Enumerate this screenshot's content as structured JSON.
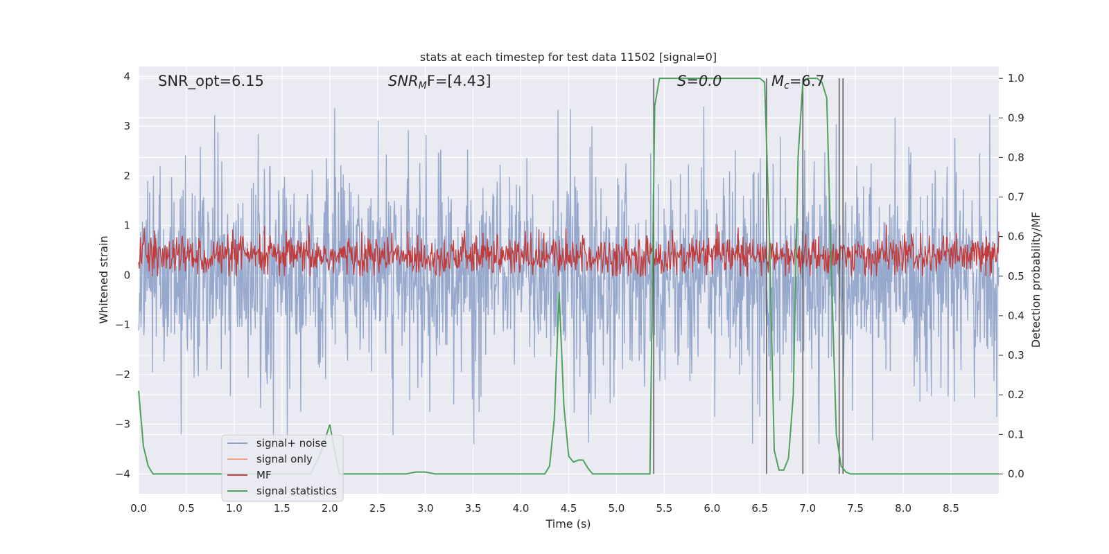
{
  "chart_data": {
    "type": "line",
    "title": "stats at each timestep for test data 11502 [signal=0]",
    "xlabel": "Time (s)",
    "ylabel_left": "Whitened strain",
    "ylabel_right": "Detection probability/MF",
    "xlim": [
      0.0,
      9.0
    ],
    "ylim_left": [
      -4.4,
      4.2
    ],
    "ylim_right": [
      -0.05,
      1.03
    ],
    "x_ticks": [
      "0.0",
      "0.5",
      "1.0",
      "1.5",
      "2.0",
      "2.5",
      "3.0",
      "3.5",
      "4.0",
      "4.5",
      "5.0",
      "5.5",
      "6.0",
      "6.5",
      "7.0",
      "7.5",
      "8.0",
      "8.5"
    ],
    "y_ticks_left": [
      "−4",
      "−3",
      "−2",
      "−1",
      "0",
      "1",
      "2",
      "3",
      "4"
    ],
    "y_ticks_right": [
      "0.0",
      "0.1",
      "0.2",
      "0.3",
      "0.4",
      "0.5",
      "0.6",
      "0.7",
      "0.8",
      "0.9",
      "1.0"
    ],
    "grid": true,
    "legend_placement": "lower-left",
    "annotations": {
      "snr_opt": "SNR_opt=6.15",
      "snr_mf_prefix": "SNR",
      "snr_mf_sub": "M",
      "snr_mf_suffix": "F=[4.43]",
      "s_value": "S=0.0",
      "mc_prefix": "M",
      "mc_sub": "c",
      "mc_suffix": "=6.7"
    },
    "series": [
      {
        "name": "signal+ noise",
        "color": "#8da2c9",
        "y_range": [
          -3.4,
          3.5
        ],
        "style": "noise"
      },
      {
        "name": "signal only",
        "color": "#f3a582",
        "values": []
      },
      {
        "name": "MF",
        "color": "#c23b3b",
        "y_range": [
          0.0,
          1.0
        ],
        "style": "noise"
      },
      {
        "name": "signal statistics",
        "color": "#4ca25c",
        "x": [
          0.0,
          0.05,
          0.1,
          0.15,
          0.2,
          0.3,
          0.5,
          1.0,
          1.5,
          1.8,
          1.9,
          2.0,
          2.05,
          2.1,
          2.5,
          2.8,
          2.9,
          3.0,
          3.1,
          3.5,
          4.0,
          4.25,
          4.3,
          4.35,
          4.4,
          4.45,
          4.5,
          4.55,
          4.6,
          4.65,
          4.7,
          4.75,
          4.8,
          4.85,
          4.9,
          5.0,
          5.35,
          5.4,
          5.45,
          5.5,
          5.55,
          5.6,
          6.0,
          6.5,
          6.55,
          6.6,
          6.65,
          6.7,
          6.75,
          6.8,
          6.85,
          6.9,
          6.95,
          7.0,
          7.05,
          7.1,
          7.15,
          7.2,
          7.25,
          7.3,
          7.35,
          7.4,
          7.45,
          7.5,
          7.55,
          7.6,
          8.0,
          8.5,
          9.0
        ],
        "values": [
          0.21,
          0.07,
          0.02,
          0.0,
          0.0,
          0.0,
          0.0,
          0.0,
          0.0,
          0.0,
          0.05,
          0.125,
          0.06,
          0.0,
          0.0,
          0.0,
          0.005,
          0.005,
          0.0,
          0.0,
          0.0,
          0.0,
          0.02,
          0.14,
          0.46,
          0.17,
          0.045,
          0.03,
          0.035,
          0.035,
          0.015,
          0.0,
          0.0,
          0.0,
          0.0,
          0.0,
          0.0,
          0.93,
          1.0,
          1.0,
          1.0,
          1.0,
          1.0,
          1.0,
          0.99,
          0.6,
          0.06,
          0.01,
          0.01,
          0.04,
          0.2,
          0.8,
          0.99,
          1.0,
          1.0,
          1.0,
          0.99,
          0.95,
          0.5,
          0.1,
          0.02,
          0.005,
          0.0,
          0.0,
          0.0,
          0.0,
          0.0,
          0.0,
          0.0
        ]
      }
    ],
    "vertical_markers": {
      "color": "#555555",
      "x": [
        5.39,
        6.57,
        6.95,
        7.33,
        7.37
      ],
      "y_top": [
        1.0,
        1.0,
        1.0,
        1.0,
        1.0
      ]
    }
  }
}
